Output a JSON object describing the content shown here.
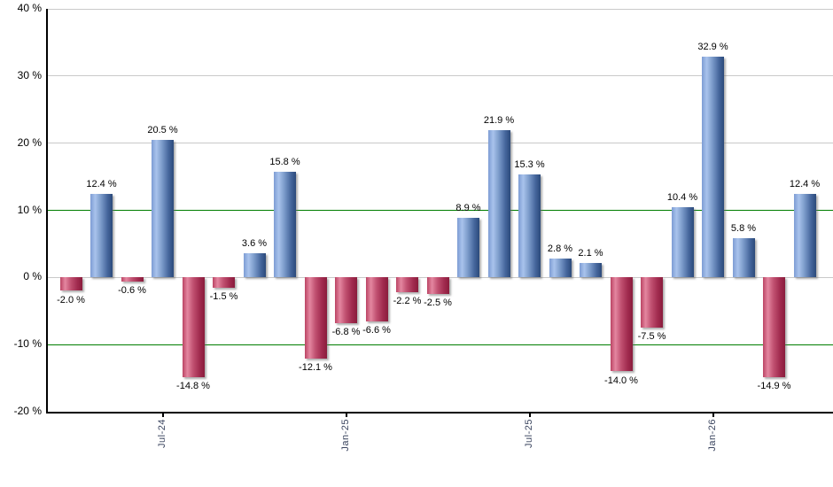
{
  "chart_data": {
    "type": "bar",
    "title": "",
    "xlabel": "",
    "ylabel": "",
    "ylim": [
      -20,
      40
    ],
    "grid": true,
    "legend": "none",
    "values": [
      -2.0,
      12.4,
      -0.6,
      20.5,
      -14.8,
      -1.5,
      3.6,
      15.8,
      -12.1,
      -6.8,
      -6.6,
      -2.2,
      -2.5,
      8.9,
      21.9,
      15.3,
      2.8,
      2.1,
      -14.0,
      -7.5,
      10.4,
      32.9,
      5.8,
      -14.9,
      12.4
    ],
    "value_labels": [
      "-2.0 %",
      "12.4 %",
      "-0.6 %",
      "20.5 %",
      "-14.8 %",
      "-1.5 %",
      "3.6 %",
      "15.8 %",
      "-12.1 %",
      "-6.8 %",
      "-6.6 %",
      "-2.2 %",
      "-2.5 %",
      "8.9 %",
      "21.9 %",
      "15.3 %",
      "2.8 %",
      "2.1 %",
      "-14.0 %",
      "-7.5 %",
      "10.4 %",
      "32.9 %",
      "5.8 %",
      "-14.9 %",
      "12.4 %"
    ],
    "y_ticks": [
      {
        "label": "40 %",
        "value": 40,
        "line": "gray"
      },
      {
        "label": "30 %",
        "value": 30,
        "line": "gray"
      },
      {
        "label": "20 %",
        "value": 20,
        "line": "gray"
      },
      {
        "label": "10 %",
        "value": 10,
        "line": "green"
      },
      {
        "label": "0 %",
        "value": 0,
        "line": "gray"
      },
      {
        "label": "-10 %",
        "value": -10,
        "line": "green"
      },
      {
        "label": "-20 %",
        "value": -20,
        "line": "axis"
      }
    ],
    "x_ticks": [
      {
        "label": "Jul-24",
        "bar_index": 3
      },
      {
        "label": "Jan-25",
        "bar_index": 9
      },
      {
        "label": "Jul-25",
        "bar_index": 15
      },
      {
        "label": "Jan-26",
        "bar_index": 21
      }
    ]
  },
  "colors": {
    "positive_bar_light": "#a9c3ec",
    "positive_bar_dark": "#2b4a7a",
    "negative_bar_light": "#e486a0",
    "negative_bar_dark": "#8a1c3c",
    "gridline": "#c9c9c9",
    "threshold_line": "#007d00",
    "axis": "#000000",
    "x_tick_label": "#3c4660",
    "background": "#ffffff"
  }
}
